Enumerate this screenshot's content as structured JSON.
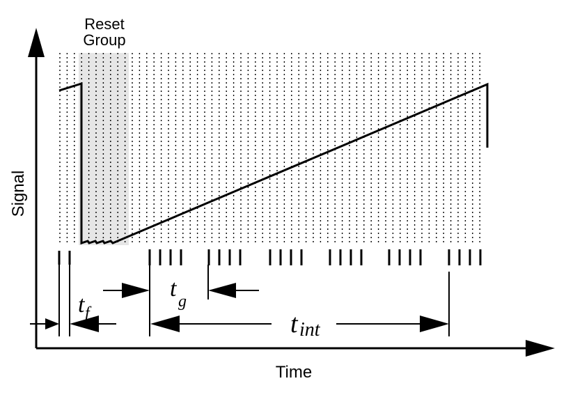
{
  "labels": {
    "reset_group_line1": "Reset",
    "reset_group_line2": "Group",
    "y_axis": "Signal",
    "x_axis": "Time",
    "t_f_main": "t",
    "t_f_sub": "f",
    "t_g_main": "t",
    "t_g_sub": "g",
    "t_int_main": "t",
    "t_int_sub": "int"
  },
  "colors": {
    "ink": "#000000",
    "reset_shade": "#e6e6e6"
  },
  "sampling": {
    "reset_group_reads": 4,
    "group_reads": 4,
    "groups_after_reset": 6
  }
}
